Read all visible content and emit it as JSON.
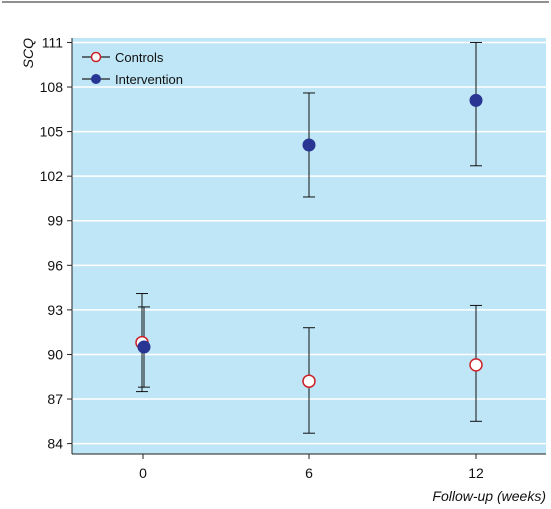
{
  "chart_data": {
    "type": "scatter",
    "title": "",
    "xlabel": "Follow-up (weeks)",
    "ylabel": "SCQ",
    "x_categories": [
      "0",
      "6",
      "12"
    ],
    "y_ticks": [
      84,
      87,
      90,
      93,
      96,
      99,
      102,
      105,
      108,
      111
    ],
    "ylim": [
      83.3,
      111.3
    ],
    "grid": "horizontal",
    "legend_position": "top-left",
    "series": [
      {
        "name": "Controls",
        "marker": "open-circle",
        "color": "#cc2229",
        "points": [
          {
            "x": "0",
            "y": 90.8,
            "err_low": 87.5,
            "err_high": 94.1
          },
          {
            "x": "6",
            "y": 88.2,
            "err_low": 84.7,
            "err_high": 91.8
          },
          {
            "x": "12",
            "y": 89.3,
            "err_low": 85.5,
            "err_high": 93.3
          }
        ]
      },
      {
        "name": "Intervention",
        "marker": "filled-circle",
        "color": "#283593",
        "points": [
          {
            "x": "0",
            "y": 90.5,
            "err_low": 87.8,
            "err_high": 93.2
          },
          {
            "x": "6",
            "y": 104.1,
            "err_low": 100.6,
            "err_high": 107.6
          },
          {
            "x": "12",
            "y": 107.1,
            "err_low": 102.7,
            "err_high": 111.0
          }
        ]
      }
    ],
    "colors": {
      "plot_background": "#bfe6f6",
      "gridline": "#ffffff",
      "axis": "#222222"
    }
  }
}
